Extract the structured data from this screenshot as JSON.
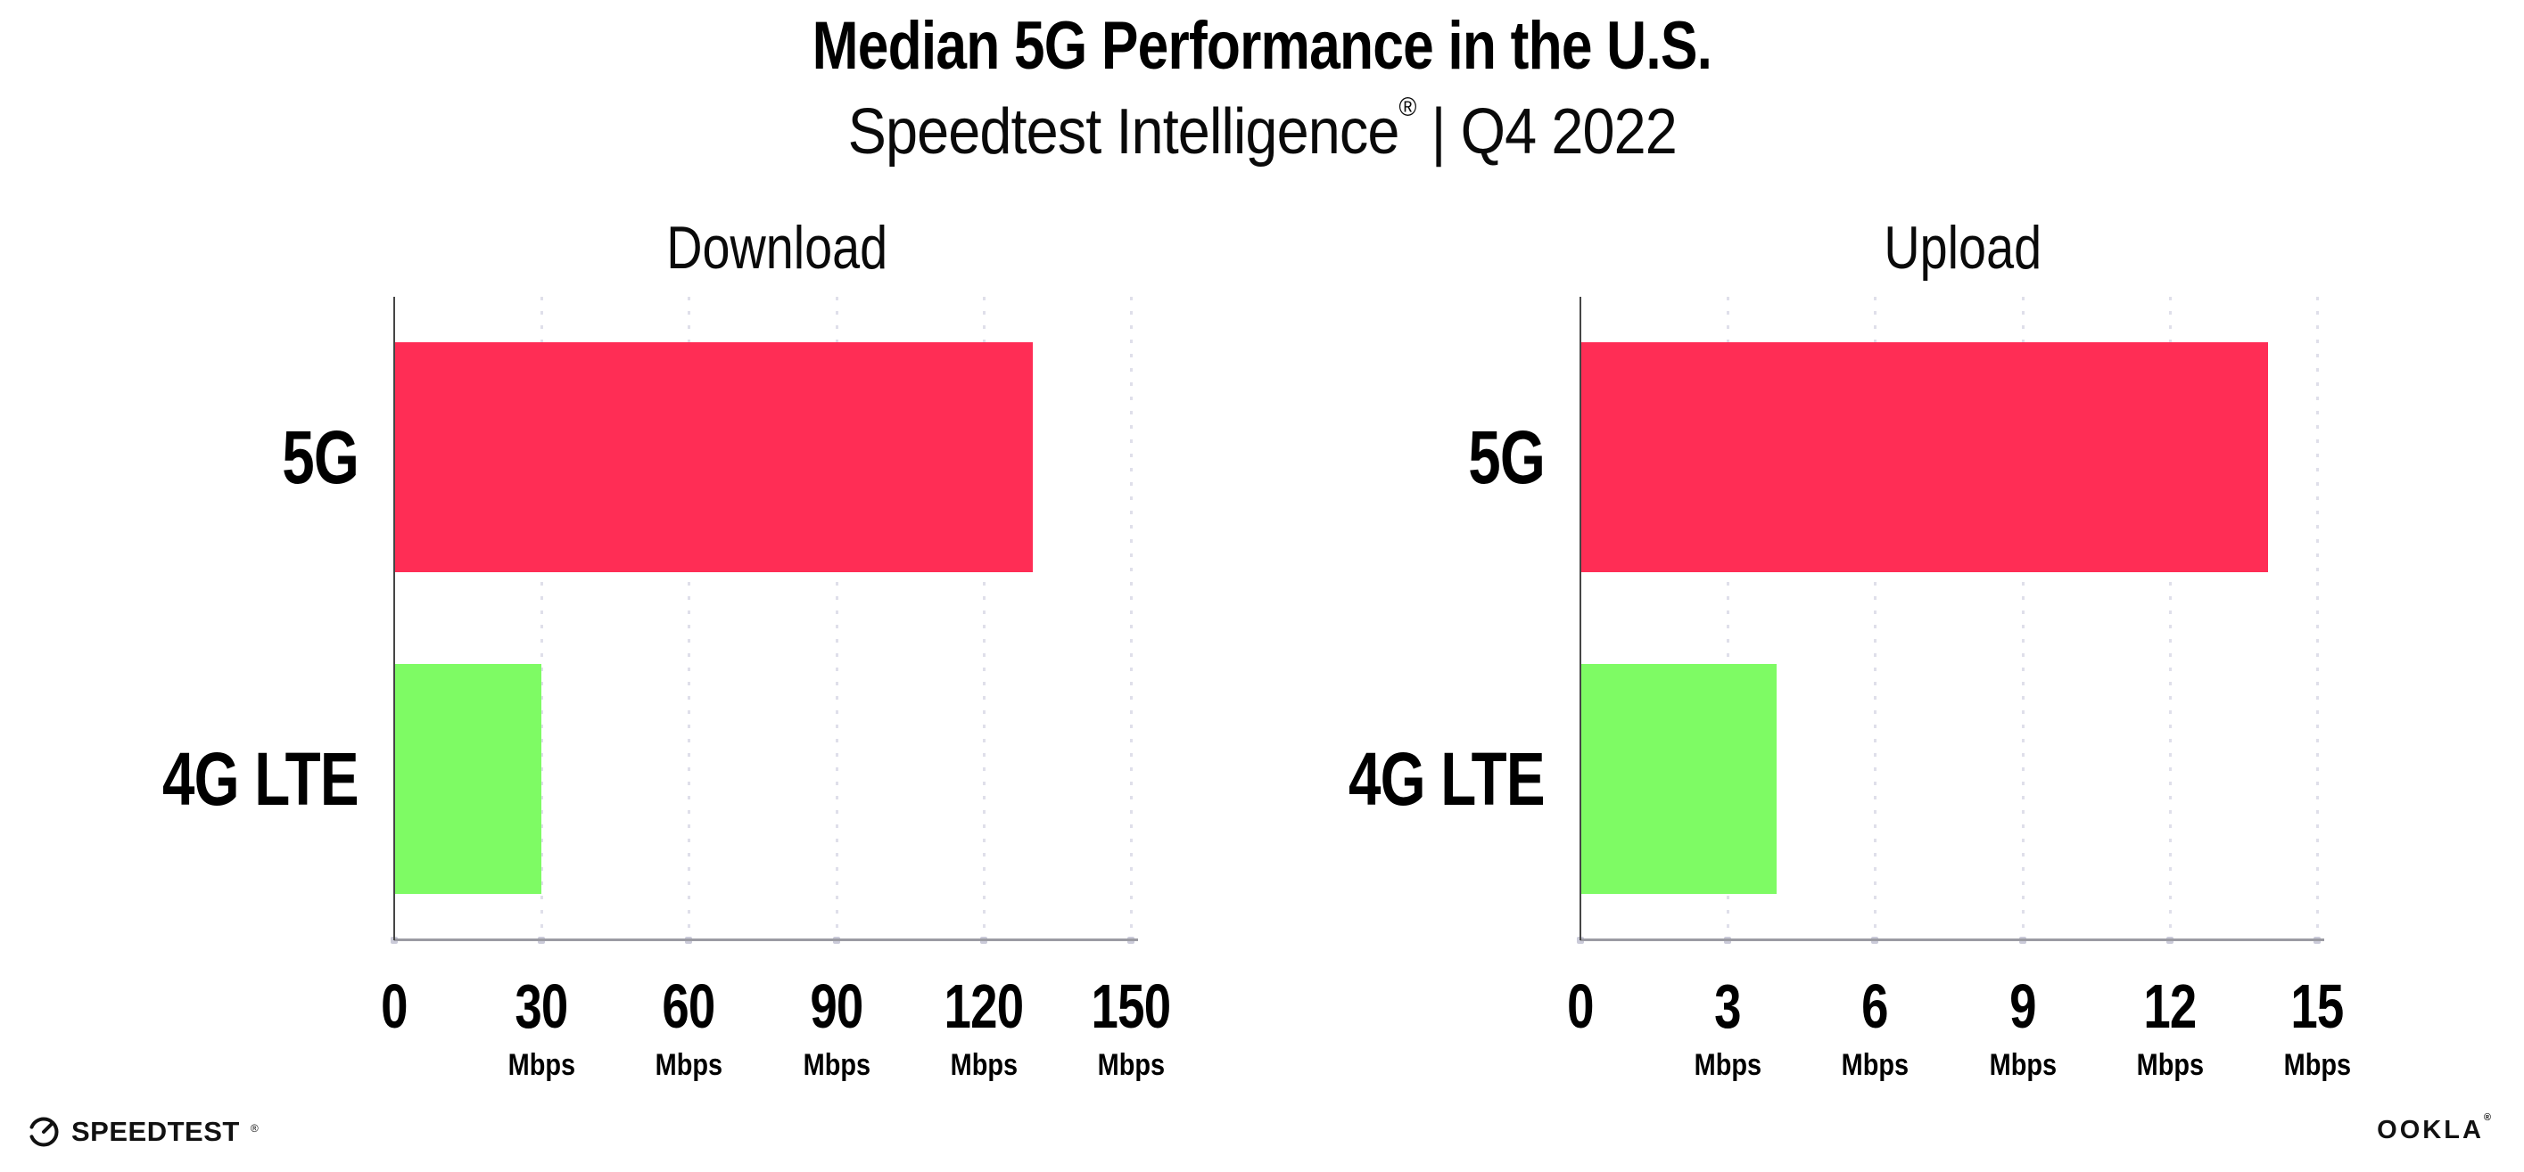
{
  "header": {
    "title": "Median 5G Performance in the U.S.",
    "subtitle_brand": "Speedtest Intelligence",
    "subtitle_reg": "®",
    "subtitle_period": " | Q4 2022"
  },
  "chart_data": [
    {
      "type": "bar",
      "orientation": "horizontal",
      "title": "Download",
      "categories": [
        "5G",
        "4G LTE"
      ],
      "values": [
        130,
        30
      ],
      "value_unit": "Mbps",
      "xlim": [
        0,
        150
      ],
      "xticks": [
        "0",
        "30",
        "60",
        "90",
        "120",
        "150"
      ],
      "tick_unit": "Mbps",
      "bar_colors": [
        "#FF2D55",
        "#7EFB64"
      ],
      "grid": "vertical-dotted",
      "legend": "none"
    },
    {
      "type": "bar",
      "orientation": "horizontal",
      "title": "Upload",
      "categories": [
        "5G",
        "4G LTE"
      ],
      "values": [
        14,
        4
      ],
      "value_unit": "Mbps",
      "xlim": [
        0,
        15
      ],
      "xticks": [
        "0",
        "3",
        "6",
        "9",
        "12",
        "15"
      ],
      "tick_unit": "Mbps",
      "bar_colors": [
        "#FF2D55",
        "#7EFB64"
      ],
      "grid": "vertical-dotted",
      "legend": "none"
    }
  ],
  "footer": {
    "speedtest_logo": "SPEEDTEST",
    "speedtest_reg": "®",
    "ookla_logo": "OOKLA",
    "ookla_reg": "®"
  },
  "colors": {
    "bar_5g": "#FF2D55",
    "bar_4g_lte": "#7EFB64",
    "axis_baseline": "#9B9BA3",
    "axis_spine": "#454545",
    "gridline": "#DFDFEA",
    "text": "#000000"
  }
}
